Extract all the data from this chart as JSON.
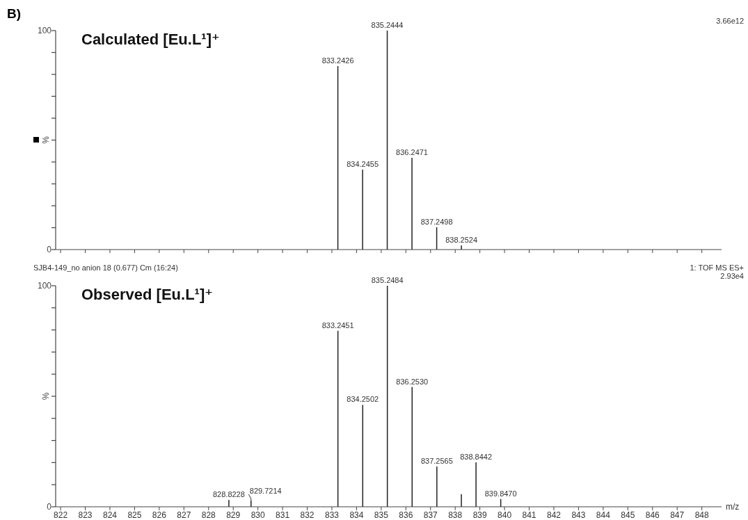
{
  "chart_data": [
    {
      "type": "bar",
      "title": "Calculated [Eu.L¹]⁺",
      "ylabel": "%",
      "annotations": [
        "B)",
        "3.66e12",
        {
          "text": "833.2426",
          "x": 833.2426,
          "y": 83.8
        },
        {
          "text": "834.2455",
          "x": 834.2455,
          "y": 36.5
        },
        {
          "text": "835.2444",
          "x": 835.2444,
          "y": 100
        },
        {
          "text": "836.2471",
          "x": 836.2471,
          "y": 41.9
        },
        {
          "text": "837.2498",
          "x": 837.2498,
          "y": 10.2
        },
        {
          "text": "838.2524",
          "x": 838.2524,
          "y": 1.9
        }
      ],
      "x": [
        833.2426,
        834.2455,
        835.2444,
        836.2471,
        837.2498,
        838.2524
      ],
      "values": [
        83.8,
        36.5,
        100,
        41.9,
        10.2,
        1.9
      ],
      "color": "#222222",
      "xlim": [
        821.8,
        848.8
      ],
      "ylim": [
        0,
        100
      ],
      "xticks": [
        822,
        823,
        824,
        825,
        826,
        827,
        828,
        829,
        830,
        831,
        832,
        833,
        834,
        835,
        836,
        837,
        838,
        839,
        840,
        841,
        842,
        843,
        844,
        845,
        846,
        847,
        848
      ],
      "yticks": [
        {
          "value": 0,
          "label": "0"
        },
        {
          "value": 10,
          "label": null
        },
        {
          "value": 20,
          "label": null
        },
        {
          "value": 30,
          "label": null
        },
        {
          "value": 40,
          "label": null
        },
        {
          "value": 50,
          "label": null
        },
        {
          "value": 60,
          "label": null
        },
        {
          "value": 70,
          "label": null
        },
        {
          "value": 80,
          "label": null
        },
        {
          "value": 90,
          "label": null
        },
        {
          "value": 100,
          "label": "100"
        }
      ],
      "tick_labels": "y"
    },
    {
      "type": "bar",
      "title": "Observed [Eu.L¹]⁺",
      "ylabel": "%",
      "xlabel": "m/z",
      "annotations": [
        "SJB4-149_no anion 18 (0.677) Cm (16:24)",
        "1: TOF MS ES+",
        "2.93e4",
        {
          "text": "828.8228",
          "x": 828.8228,
          "y": 3.1
        },
        {
          "text": "829.7214",
          "x": 829.7214,
          "y": 2.8
        },
        {
          "text": "833.2451",
          "x": 833.2451,
          "y": 79.6
        },
        {
          "text": "834.2502",
          "x": 834.2502,
          "y": 46.1
        },
        {
          "text": "835.2484",
          "x": 835.2484,
          "y": 100
        },
        {
          "text": "836.2530",
          "x": 836.253,
          "y": 54.2
        },
        {
          "text": "837.2565",
          "x": 837.2565,
          "y": 18.2
        },
        {
          "text": "838.8442",
          "x": 838.8442,
          "y": 20.1
        },
        {
          "text": "839.8470",
          "x": 839.847,
          "y": 3.5
        }
      ],
      "x": [
        828.8228,
        829.7214,
        833.2451,
        834.2502,
        835.2484,
        836.253,
        837.2565,
        838.25,
        838.8442,
        839.847
      ],
      "values": [
        3.1,
        2.8,
        79.6,
        46.1,
        100,
        54.2,
        18.2,
        5.7,
        20.1,
        3.5
      ],
      "color": "#222222",
      "xlim": [
        821.8,
        848.8
      ],
      "ylim": [
        0,
        100
      ],
      "xticks": [
        822,
        823,
        824,
        825,
        826,
        827,
        828,
        829,
        830,
        831,
        832,
        833,
        834,
        835,
        836,
        837,
        838,
        839,
        840,
        841,
        842,
        843,
        844,
        845,
        846,
        847,
        848
      ],
      "yticks": [
        {
          "value": 0,
          "label": "0"
        },
        {
          "value": 10,
          "label": null
        },
        {
          "value": 20,
          "label": null
        },
        {
          "value": 30,
          "label": null
        },
        {
          "value": 40,
          "label": null
        },
        {
          "value": 50,
          "label": null
        },
        {
          "value": 60,
          "label": null
        },
        {
          "value": 70,
          "label": null
        },
        {
          "value": 80,
          "label": null
        },
        {
          "value": 90,
          "label": null
        },
        {
          "value": 100,
          "label": "100"
        }
      ]
    }
  ]
}
